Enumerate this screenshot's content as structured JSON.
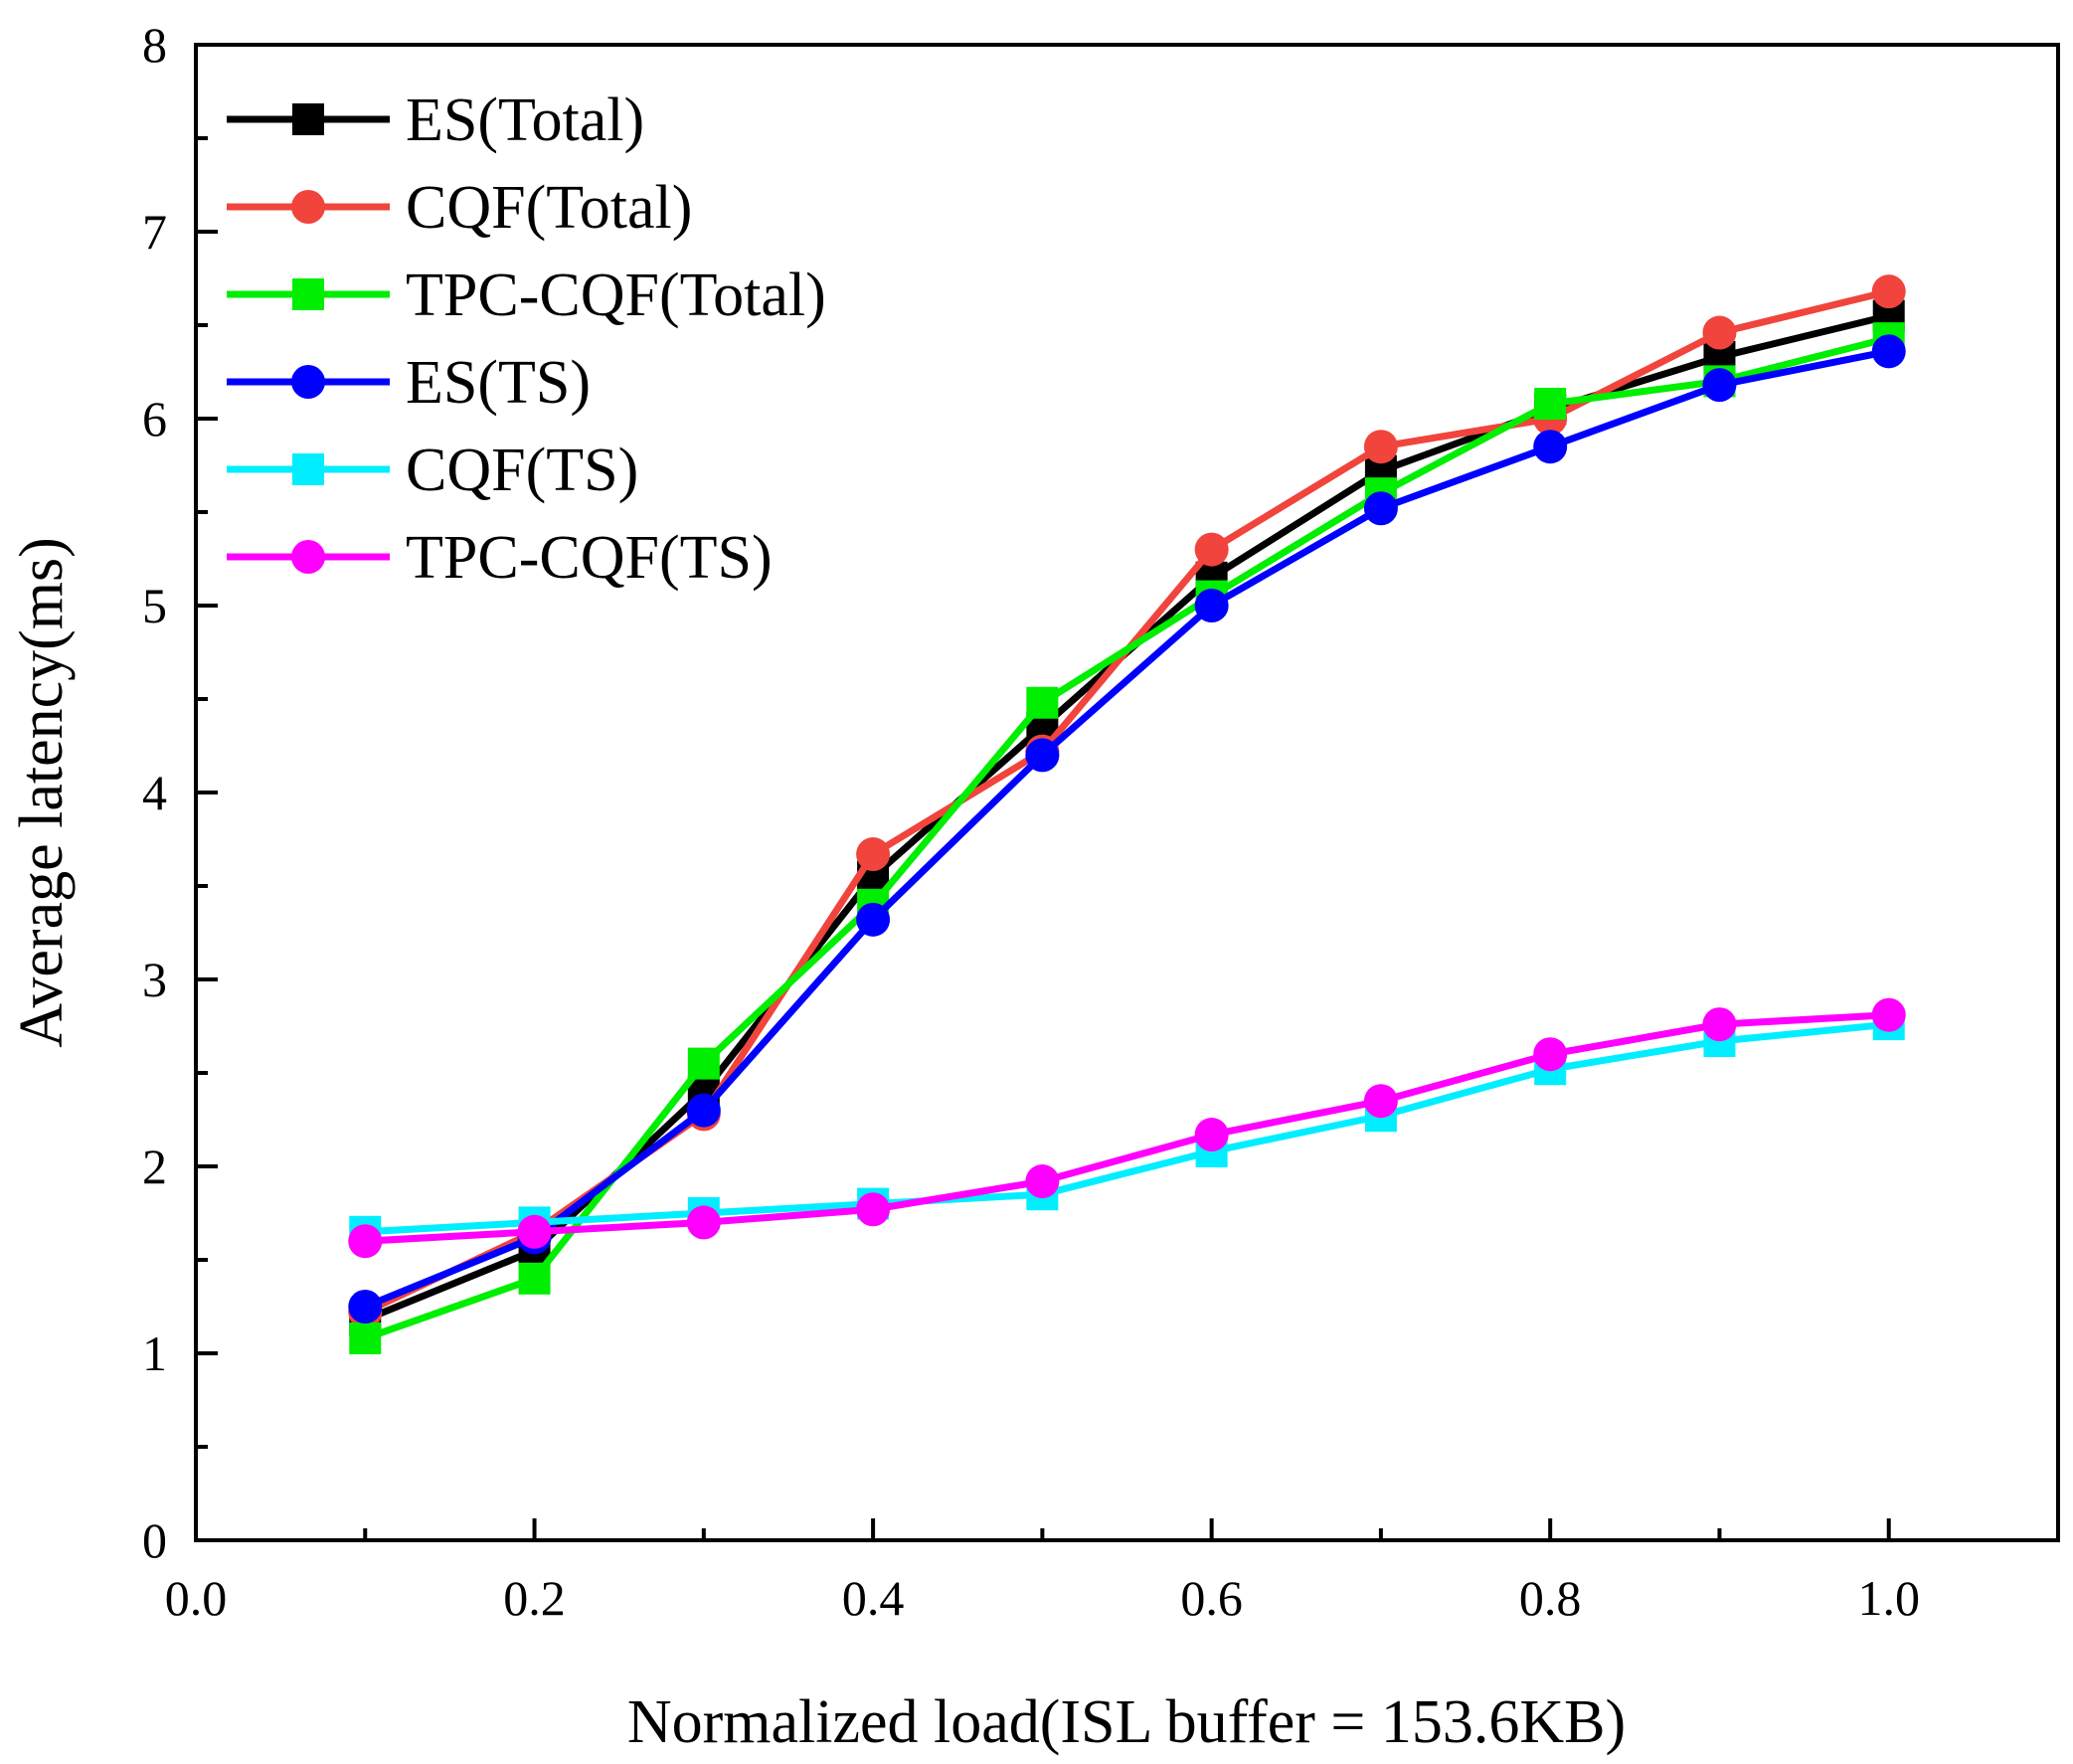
{
  "chart_data": {
    "type": "line",
    "xlabel": "Normalized load(ISL buffer = 153.6KB)",
    "ylabel": "Average latency(ms)",
    "xlim": [
      0.0,
      1.1
    ],
    "ylim": [
      0,
      8
    ],
    "x_ticks": [
      "0.0",
      "0.2",
      "0.4",
      "0.6",
      "0.8",
      "1.0"
    ],
    "x_tick_values": [
      0.0,
      0.2,
      0.4,
      0.6,
      0.8,
      1.0
    ],
    "y_ticks": [
      "0",
      "1",
      "2",
      "3",
      "4",
      "5",
      "6",
      "7",
      "8"
    ],
    "y_tick_values": [
      0,
      1,
      2,
      3,
      4,
      5,
      6,
      7,
      8
    ],
    "grid": false,
    "legend_position": "top-left",
    "x": [
      0.1,
      0.2,
      0.3,
      0.4,
      0.5,
      0.6,
      0.7,
      0.8,
      0.9,
      1.0
    ],
    "series": [
      {
        "name": "ES(Total)",
        "color": "#000000",
        "marker": "square",
        "values": [
          1.18,
          1.55,
          2.4,
          3.55,
          4.35,
          5.15,
          5.72,
          6.05,
          6.33,
          6.55
        ]
      },
      {
        "name": "CQF(Total)",
        "color": "#f0443c",
        "marker": "circle",
        "values": [
          1.22,
          1.65,
          2.28,
          3.67,
          4.22,
          5.3,
          5.85,
          6.0,
          6.46,
          6.68
        ]
      },
      {
        "name": "TPC-CQF(Total)",
        "color": "#00ee00",
        "marker": "square",
        "values": [
          1.08,
          1.4,
          2.55,
          3.4,
          4.48,
          5.05,
          5.6,
          6.08,
          6.2,
          6.43
        ]
      },
      {
        "name": "ES(TS)",
        "color": "#0000ff",
        "marker": "circle",
        "values": [
          1.25,
          1.62,
          2.3,
          3.32,
          4.2,
          5.0,
          5.52,
          5.85,
          6.18,
          6.36
        ]
      },
      {
        "name": "CQF(TS)",
        "color": "#00eeff",
        "marker": "square",
        "values": [
          1.65,
          1.7,
          1.75,
          1.8,
          1.85,
          2.08,
          2.27,
          2.52,
          2.67,
          2.76
        ]
      },
      {
        "name": "TPC-CQF(TS)",
        "color": "#ff00ff",
        "marker": "circle",
        "values": [
          1.6,
          1.65,
          1.7,
          1.77,
          1.92,
          2.17,
          2.35,
          2.6,
          2.76,
          2.81
        ]
      }
    ]
  }
}
